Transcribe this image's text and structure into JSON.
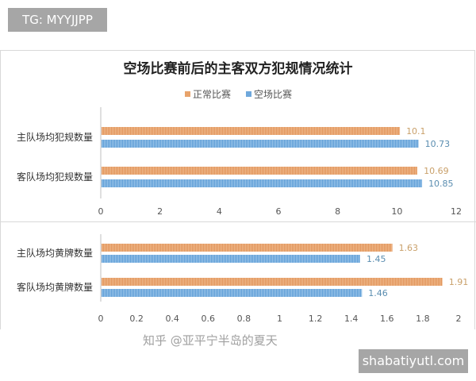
{
  "tag": "TG: MYYJJPP",
  "site": "shabatiyutl.com",
  "watermark": "知乎 @亚平宁半岛的夏天",
  "chart_data": [
    {
      "type": "bar",
      "orientation": "horizontal",
      "title": "空场比赛前后的主客双方犯规情况统计",
      "legend": [
        "正常比赛",
        "空场比赛"
      ],
      "legend_position": "top",
      "categories": [
        "主队场均犯规数量",
        "客队场均犯规数量"
      ],
      "series": [
        {
          "name": "正常比赛",
          "values": [
            10.1,
            10.69
          ],
          "labels": [
            "10.1",
            "10.69"
          ],
          "color": "#e8a36b"
        },
        {
          "name": "空场比赛",
          "values": [
            10.73,
            10.85
          ],
          "labels": [
            "10.73",
            "10.85"
          ],
          "color": "#6fa8dc"
        }
      ],
      "xlim": [
        0,
        12
      ],
      "xticks": [
        "0",
        "2",
        "4",
        "6",
        "8",
        "10",
        "12"
      ],
      "grid": false
    },
    {
      "type": "bar",
      "orientation": "horizontal",
      "categories": [
        "主队场均黄牌数量",
        "客队场均黄牌数量"
      ],
      "series": [
        {
          "name": "正常比赛",
          "values": [
            1.63,
            1.91
          ],
          "labels": [
            "1.63",
            "1.91"
          ],
          "color": "#e8a36b"
        },
        {
          "name": "空场比赛",
          "values": [
            1.45,
            1.46
          ],
          "labels": [
            "1.45",
            "1.46"
          ],
          "color": "#6fa8dc"
        }
      ],
      "xlim": [
        0,
        2
      ],
      "xticks": [
        "0",
        "0.2",
        "0.4",
        "0.6",
        "0.8",
        "1",
        "1.2",
        "1.4",
        "1.6",
        "1.8",
        "2"
      ],
      "grid": false
    }
  ]
}
